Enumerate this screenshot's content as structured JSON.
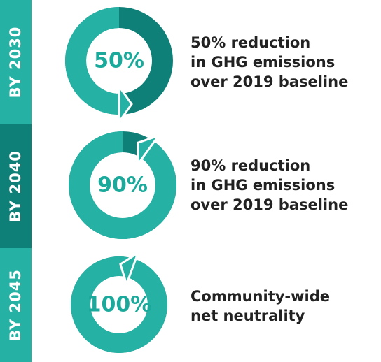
{
  "items": [
    {
      "period": "BY 2030",
      "value": 50,
      "value_label": "50%",
      "lines": [
        "50% reduction",
        "in GHG emissions",
        "over 2019 baseline"
      ]
    },
    {
      "period": "BY 2040",
      "value": 90,
      "value_label": "90%",
      "lines": [
        "90% reduction",
        "in GHG emissions",
        "over 2019 baseline"
      ]
    },
    {
      "period": "BY 2045",
      "value": 100,
      "value_label": "100%",
      "lines": [
        "Community-wide",
        "net neutrality"
      ]
    }
  ]
}
